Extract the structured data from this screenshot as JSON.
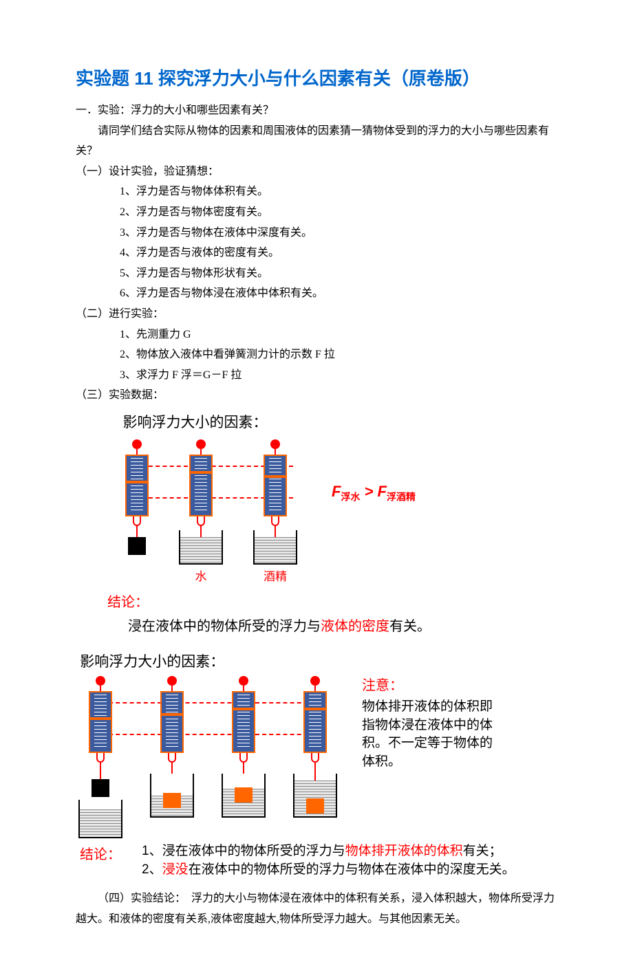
{
  "title": "实验题 11 探究浮力大小与什么因素有关（原卷版）",
  "intro": {
    "heading": "一．实验：浮力的大小和哪些因素有关？",
    "question": "请同学们结合实际从物体的因素和周围液体的因素猜一猜物体受到的浮力的大小与哪些因素有关？"
  },
  "sec1": {
    "heading": "（一）设计实验，验证猜想：",
    "items": [
      "1、浮力是否与物体体积有关。",
      "2、浮力是否与物体密度有关。",
      "3、浮力是否与物体在液体中深度有关。",
      "4、浮力是否与液体的密度有关。",
      "5、浮力是否与物体形状有关。",
      "6、浮力是否与物体浸在液体中体积有关。"
    ]
  },
  "sec2": {
    "heading": "（二）进行实验：",
    "items": [
      "1、先测重力 G",
      "2、物体放入液体中看弹簧测力计的示数 F 拉",
      "3、求浮力 F 浮＝G－F 拉"
    ]
  },
  "sec3": {
    "heading": "（三）实验数据："
  },
  "diagram1": {
    "title": "影响浮力大小的因素：",
    "labels": {
      "water": "水",
      "alcohol": "酒精"
    },
    "formula": {
      "left": "F",
      "leftSub": "浮水",
      "op": " > ",
      "right": "F",
      "rightSub": "浮酒精"
    },
    "pointerTops": [
      36,
      22,
      28
    ],
    "colors": {
      "scaleBody": "#3b5b9e",
      "scaleBorder": "#ff6600",
      "accent": "#ff0000",
      "weight": "#000000"
    },
    "conclusion": {
      "label": "结论：",
      "pre": "浸在液体中的物体所受的浮力与",
      "red": "液体的密度",
      "post": "有关。"
    }
  },
  "diagram2": {
    "title": "影响浮力大小的因素：",
    "pointerTops": [
      36,
      30,
      22,
      22
    ],
    "beakerWaterHeights": [
      0,
      30,
      40,
      52
    ],
    "weightOffsets": [
      0,
      -28,
      -40,
      -56
    ],
    "note": {
      "title": "注意：",
      "body": "物体排开液体的体积即指物体浸在液体中的体积。不一定等于物体的体积。"
    },
    "conclusion": {
      "label": "结论：",
      "c1a": "1、浸在液体中的物体所受的浮力与",
      "c1red": "物体排开液体的体积",
      "c1b": "有关；",
      "c2a": "2、",
      "c2red": "浸没",
      "c2b": "在液体中的物体所受的浮力与物体在液体中的深度无关。"
    }
  },
  "sec4": {
    "text": "（四）实验结论：　浮力的大小与物体浸在液体中的体积有关系，浸入体积越大，物体所受浮力越大。和液体的密度有关系,液体密度越大,物体所受浮力越大。与其他因素无关。"
  }
}
